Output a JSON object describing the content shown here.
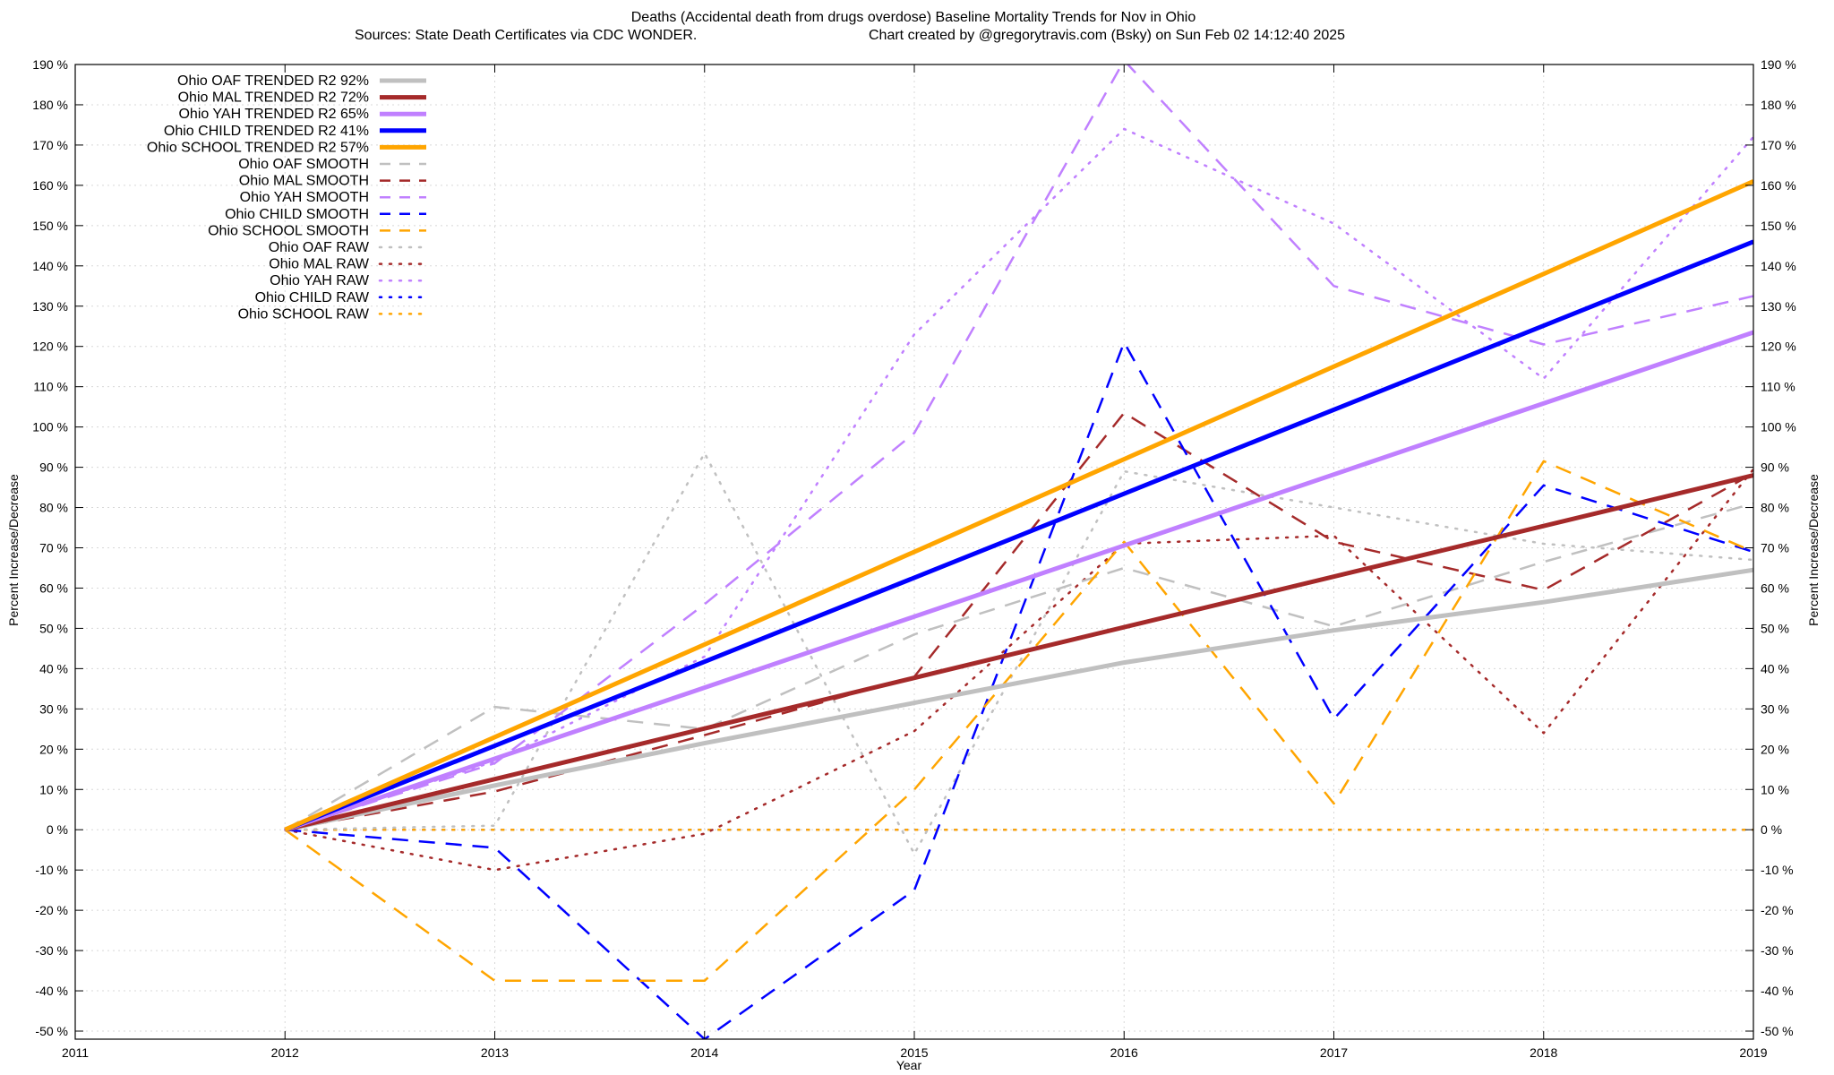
{
  "chart_data": {
    "type": "line",
    "title": "Deaths (Accidental death from drugs overdose)  Baseline Mortality Trends for Nov in Ohio",
    "subtitle_left": "Sources: State Death Certificates via CDC WONDER.",
    "subtitle_right": "Chart created by @gregorytravis.com (Bsky) on Sun Feb 02 14:12:40 2025",
    "xlabel": "Year",
    "ylabel": "Percent Increase/Decrease",
    "ylabel_right": "Percent Increase/Decrease",
    "xlim": [
      2011,
      2019
    ],
    "ylim": [
      -52,
      190
    ],
    "x_ticks": [
      2011,
      2012,
      2013,
      2014,
      2015,
      2016,
      2017,
      2018,
      2019
    ],
    "x_tick_labels": [
      "2011",
      "2012",
      "2013",
      "2014",
      "2015",
      "2016",
      "2017",
      "2018",
      "2019"
    ],
    "y_ticks": [
      -50,
      -40,
      -30,
      -20,
      -10,
      0,
      10,
      20,
      30,
      40,
      50,
      60,
      70,
      80,
      90,
      100,
      110,
      120,
      130,
      140,
      150,
      160,
      170,
      180,
      190
    ],
    "y_tick_labels": [
      "-50 %",
      "-40 %",
      "-30 %",
      "-20 %",
      "-10 %",
      "0 %",
      "10 %",
      "20 %",
      "30 %",
      "40 %",
      "50 %",
      "60 %",
      "70 %",
      "80 %",
      "90 %",
      "100 %",
      "110 %",
      "120 %",
      "130 %",
      "140 %",
      "150 %",
      "160 %",
      "170 %",
      "180 %",
      "190 %"
    ],
    "grid": true,
    "legend_position": "top-left",
    "series": [
      {
        "name": "Ohio OAF TRENDED R2  92%",
        "style": "solid",
        "color": "#c0c0c0",
        "width": 5,
        "x": [
          2012,
          2013,
          2014,
          2015,
          2016,
          2017,
          2018,
          2019
        ],
        "y": [
          0,
          11,
          21.5,
          31.5,
          41.5,
          49.5,
          56.5,
          64.5
        ]
      },
      {
        "name": "Ohio MAL TRENDED R2  72%",
        "style": "solid",
        "color": "#a52a2a",
        "width": 5,
        "x": [
          2012,
          2019
        ],
        "y": [
          0,
          88
        ]
      },
      {
        "name": "Ohio YAH TRENDED R2  65%",
        "style": "solid",
        "color": "#c080ff",
        "width": 5,
        "x": [
          2012,
          2019
        ],
        "y": [
          0,
          123.5
        ]
      },
      {
        "name": "Ohio CHILD TRENDED R2  41%",
        "style": "solid",
        "color": "#0000ff",
        "width": 5,
        "x": [
          2012,
          2019
        ],
        "y": [
          0,
          146
        ]
      },
      {
        "name": "Ohio SCHOOL TRENDED R2  57%",
        "style": "solid",
        "color": "#ffa500",
        "width": 5,
        "x": [
          2012,
          2019
        ],
        "y": [
          0,
          161
        ]
      },
      {
        "name": "Ohio OAF SMOOTH",
        "style": "dashed",
        "color": "#c0c0c0",
        "width": 2.5,
        "x": [
          2012,
          2013,
          2014,
          2015,
          2016,
          2017,
          2018,
          2019
        ],
        "y": [
          0,
          30.5,
          25,
          48.5,
          65,
          50.5,
          66.5,
          81
        ]
      },
      {
        "name": "Ohio MAL SMOOTH",
        "style": "dashed",
        "color": "#a52a2a",
        "width": 2.5,
        "x": [
          2012,
          2013,
          2014,
          2015,
          2016,
          2017,
          2018,
          2019
        ],
        "y": [
          0,
          9.5,
          23.5,
          38,
          103.5,
          71.5,
          59.5,
          88.5
        ]
      },
      {
        "name": "Ohio YAH SMOOTH",
        "style": "dashed",
        "color": "#c080ff",
        "width": 2.5,
        "x": [
          2012,
          2013,
          2014,
          2015,
          2016,
          2017,
          2018,
          2019
        ],
        "y": [
          0,
          16.5,
          56,
          98.5,
          191,
          135,
          120.5,
          132.5
        ]
      },
      {
        "name": "Ohio CHILD SMOOTH",
        "style": "dashed",
        "color": "#0000ff",
        "width": 2.5,
        "x": [
          2012,
          2013,
          2014,
          2015,
          2016,
          2017,
          2018,
          2019
        ],
        "y": [
          0,
          -4.5,
          -52,
          -15,
          121,
          27.5,
          85.5,
          69
        ]
      },
      {
        "name": "Ohio SCHOOL SMOOTH",
        "style": "dashed",
        "color": "#ffa500",
        "width": 2.5,
        "x": [
          2012,
          2013,
          2014,
          2015,
          2016,
          2017,
          2018,
          2019
        ],
        "y": [
          0,
          -37.5,
          -37.5,
          10,
          71.5,
          6.5,
          91.5,
          69
        ]
      },
      {
        "name": "Ohio OAF RAW",
        "style": "dotted",
        "color": "#c0c0c0",
        "width": 2.5,
        "x": [
          2012,
          2013,
          2014,
          2015,
          2016,
          2017,
          2018,
          2019
        ],
        "y": [
          0,
          1,
          93.5,
          -6,
          89,
          80,
          71,
          67
        ]
      },
      {
        "name": "Ohio MAL RAW",
        "style": "dotted",
        "color": "#a52a2a",
        "width": 2.5,
        "x": [
          2012,
          2013,
          2014,
          2015,
          2016,
          2017,
          2018,
          2019
        ],
        "y": [
          0,
          -10,
          -1,
          24.5,
          71,
          73,
          24,
          89.5
        ]
      },
      {
        "name": "Ohio YAH RAW",
        "style": "dotted",
        "color": "#c080ff",
        "width": 2.5,
        "x": [
          2012,
          2013,
          2014,
          2015,
          2016,
          2017,
          2018,
          2019
        ],
        "y": [
          0,
          17,
          43,
          123,
          174,
          150.5,
          112,
          172
        ]
      },
      {
        "name": "Ohio CHILD RAW",
        "style": "dotted",
        "color": "#0000ff",
        "width": 2.5,
        "x": [
          2012,
          2013,
          2014,
          2015,
          2016,
          2017,
          2018,
          2019
        ],
        "y": [
          0,
          0,
          0,
          0,
          0,
          0,
          0,
          0
        ]
      },
      {
        "name": "Ohio SCHOOL RAW",
        "style": "dotted",
        "color": "#ffa500",
        "width": 2.5,
        "x": [
          2012,
          2013,
          2014,
          2015,
          2016,
          2017,
          2018,
          2019
        ],
        "y": [
          0,
          0,
          0,
          0,
          0,
          0,
          0,
          0
        ]
      }
    ]
  }
}
